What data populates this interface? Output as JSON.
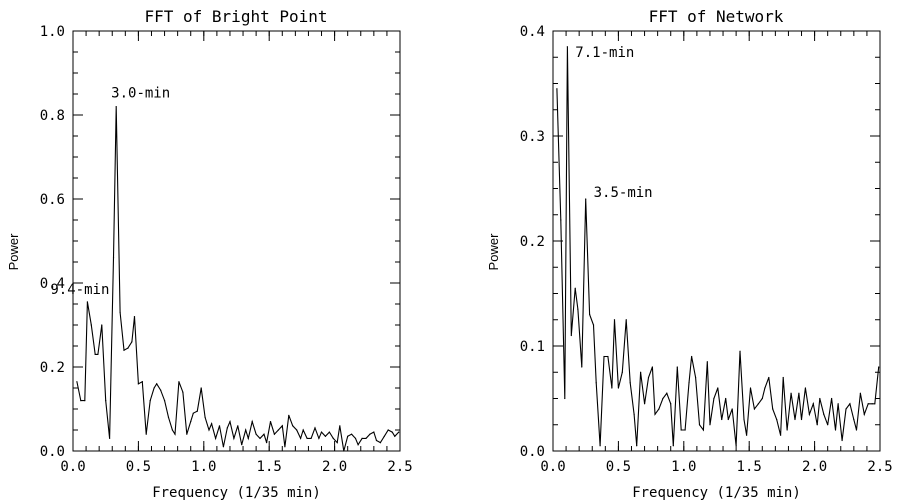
{
  "chart_data": [
    {
      "type": "line",
      "title": "FFT of Bright Point",
      "xlabel": "Frequency (1/35 min)",
      "ylabel": "Power",
      "xlim": [
        0,
        2.5
      ],
      "ylim": [
        0,
        1.0
      ],
      "xticks": [
        "0.0",
        "0.5",
        "1.0",
        "1.5",
        "2.0",
        "2.5"
      ],
      "yticks": [
        "0.0",
        "0.2",
        "0.4",
        "0.6",
        "0.8",
        "1.0"
      ],
      "grid": false,
      "annotations": [
        {
          "text": "3.0-min",
          "x": 0.33,
          "y": 0.82
        },
        {
          "text": "9.4-min",
          "x": 0.11,
          "y": 0.355
        }
      ],
      "series": [
        {
          "x": [
            0.03,
            0.06,
            0.09,
            0.11,
            0.14,
            0.17,
            0.19,
            0.22,
            0.25,
            0.28,
            0.31,
            0.33,
            0.36,
            0.39,
            0.42,
            0.45,
            0.47,
            0.5,
            0.53,
            0.56,
            0.59,
            0.62,
            0.64,
            0.67,
            0.7,
            0.73,
            0.76,
            0.78,
            0.81,
            0.84,
            0.87,
            0.9,
            0.92,
            0.95,
            0.98,
            1.01,
            1.04,
            1.06,
            1.09,
            1.12,
            1.15,
            1.18,
            1.2,
            1.23,
            1.26,
            1.29,
            1.32,
            1.34,
            1.37,
            1.4,
            1.43,
            1.46,
            1.48,
            1.51,
            1.54,
            1.57,
            1.6,
            1.62,
            1.65,
            1.68,
            1.71,
            1.74,
            1.76,
            1.79,
            1.82,
            1.85,
            1.88,
            1.9,
            1.93,
            1.96,
            1.99,
            2.02,
            2.04,
            2.07,
            2.1,
            2.13,
            2.16,
            2.18,
            2.21,
            2.24,
            2.27,
            2.3,
            2.32,
            2.35,
            2.38,
            2.41,
            2.44,
            2.46,
            2.49
          ],
          "y": [
            0.165,
            0.12,
            0.12,
            0.355,
            0.3,
            0.23,
            0.23,
            0.3,
            0.12,
            0.03,
            0.46,
            0.82,
            0.33,
            0.24,
            0.245,
            0.26,
            0.32,
            0.16,
            0.165,
            0.04,
            0.12,
            0.15,
            0.16,
            0.145,
            0.12,
            0.08,
            0.05,
            0.04,
            0.165,
            0.14,
            0.04,
            0.07,
            0.09,
            0.095,
            0.15,
            0.08,
            0.05,
            0.065,
            0.03,
            0.06,
            0.01,
            0.055,
            0.07,
            0.03,
            0.06,
            0.015,
            0.05,
            0.03,
            0.07,
            0.04,
            0.03,
            0.04,
            0.02,
            0.07,
            0.04,
            0.05,
            0.06,
            0.01,
            0.085,
            0.06,
            0.05,
            0.03,
            0.05,
            0.03,
            0.03,
            0.055,
            0.03,
            0.045,
            0.035,
            0.045,
            0.03,
            0.02,
            0.06,
            0.0,
            0.035,
            0.04,
            0.03,
            0.015,
            0.03,
            0.03,
            0.04,
            0.045,
            0.025,
            0.02,
            0.035,
            0.05,
            0.045,
            0.035,
            0.045
          ]
        }
      ]
    },
    {
      "type": "line",
      "title": "FFT of Network",
      "xlabel": "Frequency (1/35 min)",
      "ylabel": "Power",
      "xlim": [
        0,
        2.5
      ],
      "ylim": [
        0,
        0.4
      ],
      "xticks": [
        "0.0",
        "0.5",
        "1.0",
        "1.5",
        "2.0",
        "2.5"
      ],
      "yticks": [
        "0.0",
        "0.1",
        "0.2",
        "0.3",
        "0.4"
      ],
      "grid": false,
      "annotations": [
        {
          "text": "7.1-min",
          "x": 0.14,
          "y": 0.385
        },
        {
          "text": "3.5-min",
          "x": 0.28,
          "y": 0.24
        }
      ],
      "series": [
        {
          "x": [
            0.03,
            0.06,
            0.09,
            0.11,
            0.14,
            0.17,
            0.19,
            0.22,
            0.25,
            0.28,
            0.31,
            0.33,
            0.36,
            0.39,
            0.42,
            0.45,
            0.47,
            0.5,
            0.53,
            0.56,
            0.59,
            0.62,
            0.64,
            0.67,
            0.7,
            0.73,
            0.76,
            0.78,
            0.81,
            0.84,
            0.87,
            0.9,
            0.92,
            0.95,
            0.98,
            1.01,
            1.04,
            1.06,
            1.09,
            1.12,
            1.15,
            1.18,
            1.2,
            1.23,
            1.26,
            1.29,
            1.32,
            1.34,
            1.37,
            1.4,
            1.43,
            1.46,
            1.48,
            1.51,
            1.54,
            1.57,
            1.6,
            1.62,
            1.65,
            1.68,
            1.71,
            1.74,
            1.76,
            1.79,
            1.82,
            1.85,
            1.88,
            1.9,
            1.93,
            1.96,
            1.99,
            2.02,
            2.04,
            2.07,
            2.1,
            2.13,
            2.16,
            2.18,
            2.21,
            2.24,
            2.27,
            2.3,
            2.32,
            2.35,
            2.38,
            2.41,
            2.44,
            2.46,
            2.49
          ],
          "y": [
            0.345,
            0.22,
            0.05,
            0.385,
            0.11,
            0.155,
            0.135,
            0.08,
            0.24,
            0.13,
            0.12,
            0.065,
            0.005,
            0.09,
            0.09,
            0.06,
            0.125,
            0.06,
            0.075,
            0.125,
            0.065,
            0.035,
            0.005,
            0.075,
            0.045,
            0.07,
            0.08,
            0.035,
            0.04,
            0.05,
            0.055,
            0.045,
            0.005,
            0.08,
            0.02,
            0.02,
            0.065,
            0.09,
            0.07,
            0.025,
            0.02,
            0.085,
            0.025,
            0.05,
            0.06,
            0.03,
            0.05,
            0.03,
            0.04,
            0.005,
            0.095,
            0.03,
            0.015,
            0.06,
            0.04,
            0.045,
            0.05,
            0.06,
            0.07,
            0.04,
            0.03,
            0.015,
            0.07,
            0.02,
            0.055,
            0.03,
            0.055,
            0.03,
            0.06,
            0.035,
            0.045,
            0.025,
            0.05,
            0.035,
            0.025,
            0.05,
            0.02,
            0.045,
            0.01,
            0.04,
            0.045,
            0.03,
            0.02,
            0.055,
            0.035,
            0.045,
            0.045,
            0.045,
            0.08
          ]
        }
      ]
    }
  ]
}
